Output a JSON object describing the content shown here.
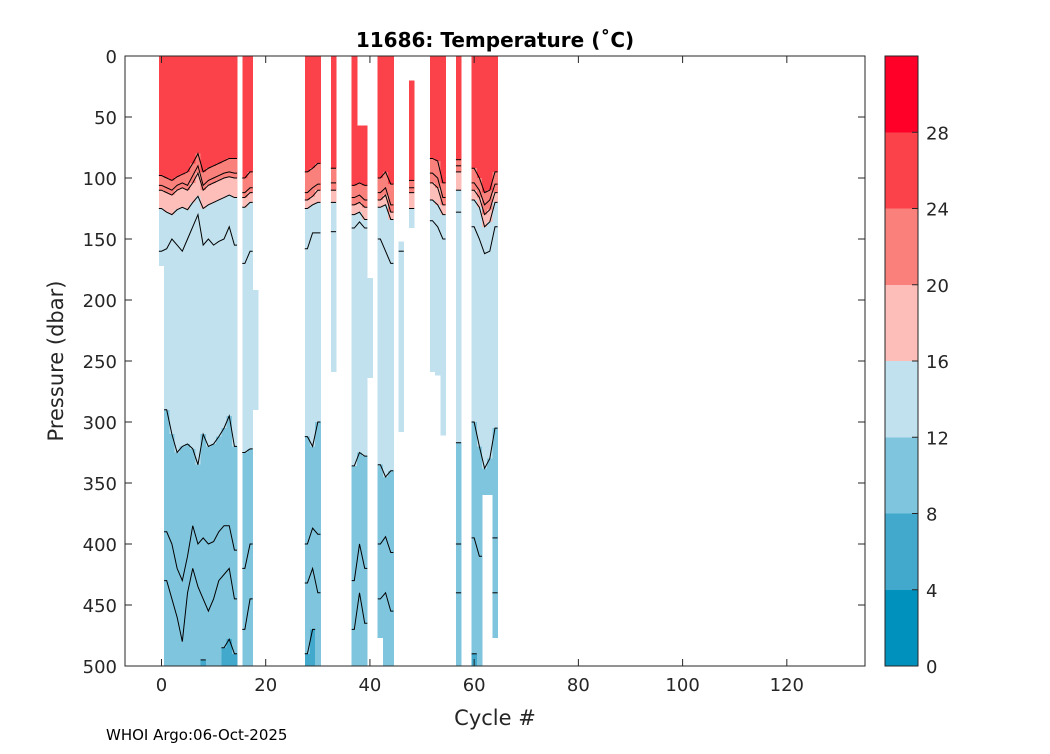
{
  "chart_data": {
    "type": "heatmap",
    "subtype": "filled-contour",
    "title": "11686:  Temperature (˚C)",
    "xlabel": "Cycle #",
    "ylabel": "Pressure (dbar)",
    "xlim": [
      -7,
      135
    ],
    "ylim": [
      0,
      500
    ],
    "y_reversed": true,
    "xticks": [
      0,
      20,
      40,
      60,
      80,
      100,
      120
    ],
    "yticks": [
      0,
      50,
      100,
      150,
      200,
      250,
      300,
      350,
      400,
      450,
      500
    ],
    "colorbar": {
      "range": [
        0,
        32
      ],
      "ticks": [
        0,
        4,
        8,
        12,
        16,
        20,
        24,
        28
      ],
      "bands": [
        {
          "from": 0,
          "to": 4,
          "color": "#0091bd"
        },
        {
          "from": 4,
          "to": 8,
          "color": "#42a9cd"
        },
        {
          "from": 8,
          "to": 12,
          "color": "#80c5de"
        },
        {
          "from": 12,
          "to": 16,
          "color": "#c0e1ed"
        },
        {
          "from": 16,
          "to": 20,
          "color": "#fdbdb8"
        },
        {
          "from": 20,
          "to": 24,
          "color": "#fa807b"
        },
        {
          "from": 24,
          "to": 28,
          "color": "#fb424a"
        },
        {
          "from": 28,
          "to": 32,
          "color": "#ff0028"
        }
      ]
    },
    "isotherm_levels": [
      24,
      22,
      20,
      16,
      14,
      12,
      11,
      10,
      8
    ],
    "profiles": [
      {
        "cycle": 0,
        "p_min": 0,
        "p_max": 172,
        "iso": [
          98,
          106,
          110,
          125,
          160,
          null,
          null,
          null,
          null
        ]
      },
      {
        "cycle": 1,
        "p_min": 0,
        "p_max": 500,
        "iso": [
          100,
          108,
          112,
          128,
          158,
          290,
          390,
          430,
          null
        ]
      },
      {
        "cycle": 2,
        "p_min": 0,
        "p_max": 500,
        "iso": [
          102,
          110,
          114,
          130,
          150,
          310,
          400,
          445,
          null
        ]
      },
      {
        "cycle": 3,
        "p_min": 0,
        "p_max": 500,
        "iso": [
          99,
          106,
          110,
          126,
          155,
          325,
          420,
          460,
          null
        ]
      },
      {
        "cycle": 4,
        "p_min": 0,
        "p_max": 500,
        "iso": [
          97,
          104,
          108,
          124,
          160,
          320,
          430,
          480,
          null
        ]
      },
      {
        "cycle": 5,
        "p_min": 0,
        "p_max": 500,
        "iso": [
          95,
          106,
          110,
          126,
          150,
          318,
          410,
          440,
          null
        ]
      },
      {
        "cycle": 6,
        "p_min": 0,
        "p_max": 500,
        "iso": [
          88,
          98,
          104,
          120,
          140,
          322,
          385,
          420,
          null
        ]
      },
      {
        "cycle": 7,
        "p_min": 0,
        "p_max": 500,
        "iso": [
          80,
          90,
          96,
          115,
          130,
          335,
          400,
          435,
          null
        ]
      },
      {
        "cycle": 8,
        "p_min": 0,
        "p_max": 500,
        "iso": [
          95,
          106,
          110,
          125,
          155,
          310,
          395,
          445,
          495
        ]
      },
      {
        "cycle": 9,
        "p_min": 0,
        "p_max": 500,
        "iso": [
          92,
          102,
          106,
          122,
          150,
          320,
          400,
          455,
          null
        ]
      },
      {
        "cycle": 10,
        "p_min": 0,
        "p_max": 500,
        "iso": [
          90,
          100,
          104,
          120,
          155,
          318,
          398,
          445,
          null
        ]
      },
      {
        "cycle": 11,
        "p_min": 0,
        "p_max": 500,
        "iso": [
          88,
          98,
          102,
          118,
          152,
          312,
          390,
          430,
          null
        ]
      },
      {
        "cycle": 12,
        "p_min": 0,
        "p_max": 500,
        "iso": [
          86,
          96,
          100,
          116,
          150,
          305,
          385,
          425,
          485
        ]
      },
      {
        "cycle": 13,
        "p_min": 0,
        "p_max": 500,
        "iso": [
          84,
          95,
          99,
          114,
          140,
          295,
          385,
          420,
          478
        ]
      },
      {
        "cycle": 14,
        "p_min": 0,
        "p_max": 500,
        "iso": [
          84,
          96,
          100,
          116,
          155,
          320,
          405,
          445,
          490
        ]
      },
      {
        "cycle": 16,
        "p_min": 0,
        "p_max": 500,
        "iso": [
          100,
          112,
          116,
          124,
          170,
          325,
          420,
          470,
          null
        ]
      },
      {
        "cycle": 17,
        "p_min": 0,
        "p_max": 500,
        "iso": [
          95,
          108,
          112,
          120,
          160,
          322,
          400,
          445,
          null
        ]
      },
      {
        "cycle": 18,
        "p_min": 192,
        "p_max": 290,
        "iso": [
          -1,
          -1,
          -1,
          -1,
          -1,
          null,
          null,
          null,
          null
        ]
      },
      {
        "cycle": 28,
        "p_min": 0,
        "p_max": 500,
        "iso": [
          95,
          112,
          118,
          125,
          158,
          312,
          400,
          432,
          490
        ]
      },
      {
        "cycle": 29,
        "p_min": 0,
        "p_max": 500,
        "iso": [
          92,
          108,
          115,
          122,
          145,
          320,
          387,
          420,
          470
        ]
      },
      {
        "cycle": 30,
        "p_min": 0,
        "p_max": 500,
        "iso": [
          88,
          105,
          110,
          120,
          145,
          300,
          392,
          440,
          null
        ]
      },
      {
        "cycle": 33,
        "p_min": 0,
        "p_max": 259,
        "iso": [
          92,
          104,
          110,
          120,
          144,
          null,
          null,
          null,
          null
        ]
      },
      {
        "cycle": 37,
        "p_min": 0,
        "p_max": 500,
        "iso": [
          106,
          116,
          122,
          130,
          141,
          336,
          430,
          470,
          null
        ]
      },
      {
        "cycle": 38,
        "p_min": 57,
        "p_max": 500,
        "iso": [
          104,
          114,
          120,
          128,
          136,
          325,
          400,
          440,
          null
        ]
      },
      {
        "cycle": 39,
        "p_min": 57,
        "p_max": 500,
        "iso": [
          106,
          118,
          124,
          134,
          141,
          328,
          420,
          465,
          null
        ]
      },
      {
        "cycle": 40,
        "p_min": 182,
        "p_max": 264,
        "iso": [
          -1,
          -1,
          -1,
          -1,
          -1,
          null,
          null,
          null,
          null
        ]
      },
      {
        "cycle": 42,
        "p_min": 0,
        "p_max": 477,
        "iso": [
          100,
          112,
          118,
          124,
          150,
          335,
          400,
          445,
          null
        ]
      },
      {
        "cycle": 43,
        "p_min": 0,
        "p_max": 500,
        "iso": [
          95,
          108,
          114,
          122,
          160,
          345,
          394,
          440,
          null
        ]
      },
      {
        "cycle": 44,
        "p_min": 0,
        "p_max": 500,
        "iso": [
          105,
          122,
          128,
          134,
          170,
          340,
          407,
          455,
          null
        ]
      },
      {
        "cycle": 46,
        "p_min": 152,
        "p_max": 308,
        "iso": [
          -1,
          -1,
          -1,
          -1,
          160,
          null,
          null,
          null,
          null
        ]
      },
      {
        "cycle": 48,
        "p_min": 20,
        "p_max": 141,
        "iso": [
          102,
          108,
          112,
          125,
          null,
          null,
          null,
          null,
          null
        ]
      },
      {
        "cycle": 52,
        "p_min": 0,
        "p_max": 259,
        "iso": [
          84,
          96,
          104,
          118,
          135,
          null,
          null,
          null,
          null
        ]
      },
      {
        "cycle": 53,
        "p_min": 0,
        "p_max": 262,
        "iso": [
          86,
          100,
          108,
          122,
          140,
          null,
          null,
          null,
          null
        ]
      },
      {
        "cycle": 54,
        "p_min": 0,
        "p_max": 311,
        "iso": [
          104,
          116,
          122,
          130,
          150,
          null,
          null,
          null,
          null
        ]
      },
      {
        "cycle": 57,
        "p_min": 0,
        "p_max": 500,
        "iso": [
          85,
          90,
          95,
          110,
          128,
          317,
          400,
          440,
          null
        ]
      },
      {
        "cycle": 60,
        "p_min": 0,
        "p_max": 500,
        "iso": [
          92,
          104,
          110,
          118,
          140,
          300,
          395,
          null,
          490
        ]
      },
      {
        "cycle": 61,
        "p_min": 0,
        "p_max": 500,
        "iso": [
          100,
          110,
          116,
          124,
          150,
          320,
          410,
          null,
          null
        ]
      },
      {
        "cycle": 62,
        "p_min": 0,
        "p_max": 360,
        "iso": [
          112,
          122,
          130,
          140,
          162,
          338,
          null,
          null,
          null
        ]
      },
      {
        "cycle": 63,
        "p_min": 0,
        "p_max": 360,
        "iso": [
          110,
          118,
          126,
          136,
          160,
          330,
          null,
          null,
          null
        ]
      },
      {
        "cycle": 64,
        "p_min": 0,
        "p_max": 477,
        "iso": [
          95,
          105,
          112,
          120,
          140,
          305,
          395,
          440,
          null
        ]
      }
    ]
  },
  "footer": "WHOI Argo:06-Oct-2025"
}
